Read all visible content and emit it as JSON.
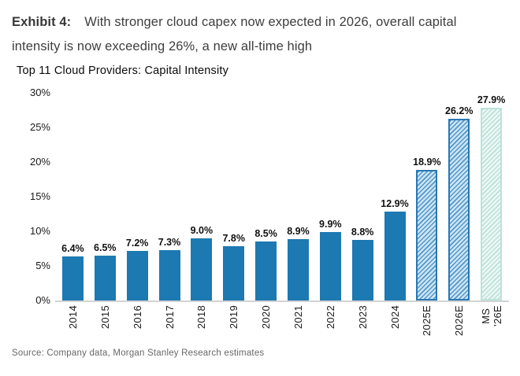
{
  "header": {
    "exhibit_label": "Exhibit 4:",
    "title_line1": "With stronger cloud capex now expected in 2026, overall capital",
    "title_line2": "intensity is now exceeding 26%, a new all-time high"
  },
  "chart_data": {
    "type": "bar",
    "title": "Top 11 Cloud Providers: Capital Intensity",
    "categories": [
      "2014",
      "2015",
      "2016",
      "2017",
      "2018",
      "2019",
      "2020",
      "2021",
      "2022",
      "2023",
      "2024",
      "2025E",
      "2026E",
      "MS\n'26E"
    ],
    "values": [
      6.4,
      6.5,
      7.2,
      7.3,
      9.0,
      7.8,
      8.5,
      8.9,
      9.9,
      8.8,
      12.9,
      18.9,
      26.2,
      27.9
    ],
    "data_labels": [
      "6.4%",
      "6.5%",
      "7.2%",
      "7.3%",
      "9.0%",
      "7.8%",
      "8.5%",
      "8.9%",
      "9.9%",
      "8.8%",
      "12.9%",
      "18.9%",
      "26.2%",
      "27.9%"
    ],
    "bar_styles": [
      "solid",
      "solid",
      "solid",
      "solid",
      "solid",
      "solid",
      "solid",
      "solid",
      "solid",
      "solid",
      "solid",
      "estimate",
      "estimate",
      "ms_estimate"
    ],
    "xlabel": "",
    "ylabel": "",
    "ylim": [
      0,
      30
    ],
    "yticks": [
      "0%",
      "5%",
      "10%",
      "15%",
      "20%",
      "25%",
      "30%"
    ],
    "grid": false,
    "legend_position": "none",
    "colors": {
      "solid_bar": "#1c79b2",
      "estimate_hatch_line": "#4e97cb",
      "estimate_hatch_bg": "#cde4f4",
      "estimate_border": "#2a77b4",
      "ms_hatch_line": "#b9e0d8",
      "ms_hatch_bg": "#edf7f4",
      "ms_border": "#bce2da",
      "axis_line": "#d3d3d3"
    }
  },
  "footer": {
    "source": "Source: Company data, Morgan Stanley Research estimates"
  }
}
